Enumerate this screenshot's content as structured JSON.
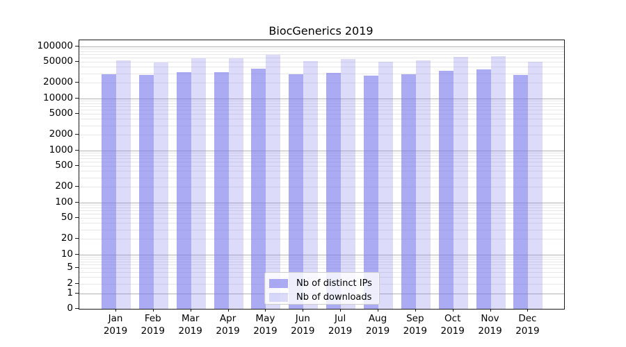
{
  "title": "BiocGenerics 2019",
  "chart_data": {
    "type": "bar",
    "title": "BiocGenerics 2019",
    "categories": [
      "Jan",
      "Feb",
      "Mar",
      "Apr",
      "May",
      "Jun",
      "Jul",
      "Aug",
      "Sep",
      "Oct",
      "Nov",
      "Dec"
    ],
    "category_year": "2019",
    "series": [
      {
        "name": "Nb of distinct IPs",
        "color": "rgba(115,115,235,0.6)",
        "values": [
          29100,
          28200,
          31900,
          31900,
          36500,
          28800,
          30400,
          26900,
          28600,
          33600,
          35400,
          28200
        ]
      },
      {
        "name": "Nb of downloads",
        "color": "rgba(115,115,235,0.25)",
        "values": [
          53800,
          48100,
          57900,
          57900,
          67500,
          52100,
          56700,
          50600,
          53300,
          62100,
          64000,
          50900
        ]
      }
    ],
    "yscale": "symlog",
    "ylim": [
      0,
      124000
    ],
    "y_ticks": [
      0,
      1,
      2,
      5,
      10,
      20,
      50,
      100,
      200,
      500,
      1000,
      2000,
      5000,
      10000,
      20000,
      50000,
      100000
    ],
    "grid": true,
    "legend_position": "lower center"
  },
  "colors": {
    "bar_base": "#7373eb",
    "grid_minor": "#e7e7e7",
    "grid_major": "#b4b4b4",
    "axis": "#1a1a1a",
    "background": "#ffffff"
  }
}
